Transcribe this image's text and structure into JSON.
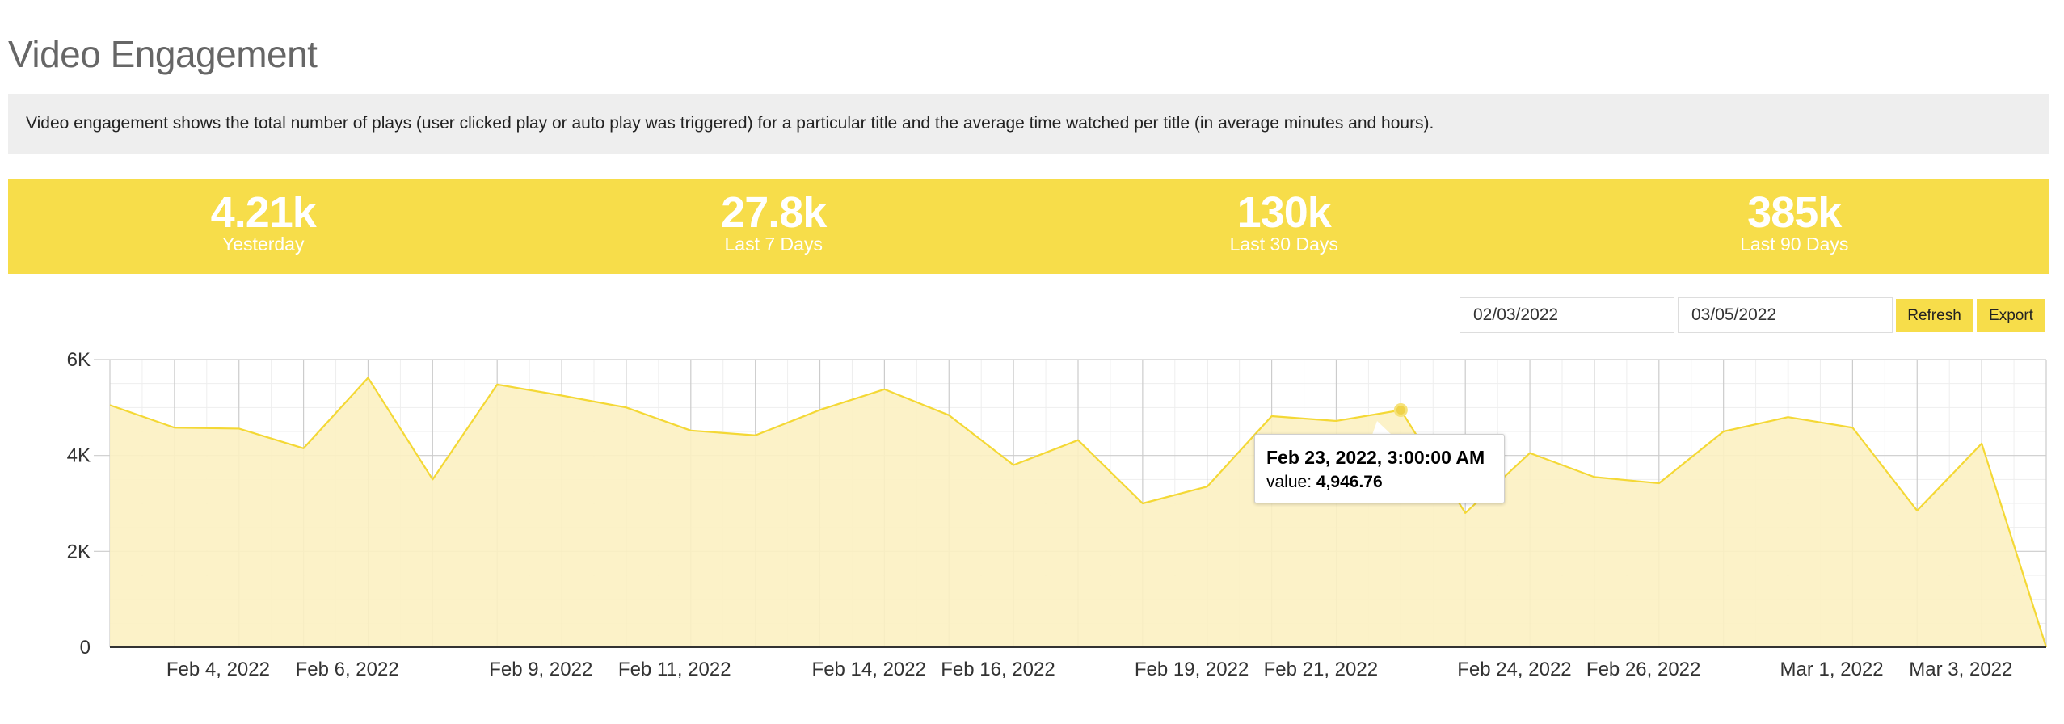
{
  "page": {
    "title": "Video Engagement",
    "description": "Video engagement shows the total number of plays (user clicked play or auto play was triggered) for a particular title and the average time watched per title (in average minutes and hours)."
  },
  "stats": [
    {
      "value": "4.21k",
      "label": "Yesterday"
    },
    {
      "value": "27.8k",
      "label": "Last 7 Days"
    },
    {
      "value": "130k",
      "label": "Last 30 Days"
    },
    {
      "value": "385k",
      "label": "Last 90 Days"
    }
  ],
  "controls": {
    "date_from": "02/03/2022",
    "date_to": "03/05/2022",
    "refresh_label": "Refresh",
    "export_label": "Export"
  },
  "colors": {
    "accent": "#f7dd4a",
    "line": "#f4d835",
    "area": "#fcf1c2",
    "grid_major": "#cccccc",
    "grid_minor": "#eeeeee"
  },
  "chart_data": {
    "type": "area",
    "title": "",
    "xlabel": "",
    "ylabel": "",
    "ylim": [
      0,
      6000
    ],
    "y_ticks": [
      {
        "value": 0,
        "label": "0"
      },
      {
        "value": 2000,
        "label": "2K"
      },
      {
        "value": 4000,
        "label": "4K"
      },
      {
        "value": 6000,
        "label": "6K"
      }
    ],
    "x_tick_labels": [
      {
        "index": 1,
        "label": "Feb 4, 2022"
      },
      {
        "index": 3,
        "label": "Feb 6, 2022"
      },
      {
        "index": 6,
        "label": "Feb 9, 2022"
      },
      {
        "index": 8,
        "label": "Feb 11, 2022"
      },
      {
        "index": 11,
        "label": "Feb 14, 2022"
      },
      {
        "index": 13,
        "label": "Feb 16, 2022"
      },
      {
        "index": 16,
        "label": "Feb 19, 2022"
      },
      {
        "index": 18,
        "label": "Feb 21, 2022"
      },
      {
        "index": 21,
        "label": "Feb 24, 2022"
      },
      {
        "index": 23,
        "label": "Feb 26, 2022"
      },
      {
        "index": 26,
        "label": "Mar 1, 2022"
      },
      {
        "index": 28,
        "label": "Mar 3, 2022"
      }
    ],
    "x": [
      "Feb 3, 2022",
      "Feb 4, 2022",
      "Feb 5, 2022",
      "Feb 6, 2022",
      "Feb 7, 2022",
      "Feb 8, 2022",
      "Feb 9, 2022",
      "Feb 10, 2022",
      "Feb 11, 2022",
      "Feb 12, 2022",
      "Feb 13, 2022",
      "Feb 14, 2022",
      "Feb 15, 2022",
      "Feb 16, 2022",
      "Feb 17, 2022",
      "Feb 18, 2022",
      "Feb 19, 2022",
      "Feb 20, 2022",
      "Feb 21, 2022",
      "Feb 22, 2022",
      "Feb 23, 2022",
      "Feb 24, 2022",
      "Feb 25, 2022",
      "Feb 26, 2022",
      "Feb 27, 2022",
      "Feb 28, 2022",
      "Mar 1, 2022",
      "Mar 2, 2022",
      "Mar 3, 2022",
      "Mar 4, 2022",
      "Mar 5, 2022"
    ],
    "series": [
      {
        "name": "value",
        "values": [
          5050,
          4580,
          4560,
          4150,
          5620,
          3500,
          5480,
          5250,
          5000,
          4520,
          4420,
          4950,
          5380,
          4840,
          3800,
          4320,
          3000,
          3350,
          4820,
          4720,
          4946.76,
          2800,
          4050,
          3550,
          3420,
          4500,
          4800,
          4580,
          2850,
          4250,
          0
        ]
      }
    ],
    "tooltip": {
      "index": 20,
      "title": "Feb 23, 2022, 3:00:00 AM",
      "value_label": "value:",
      "value": "4,946.76"
    }
  }
}
